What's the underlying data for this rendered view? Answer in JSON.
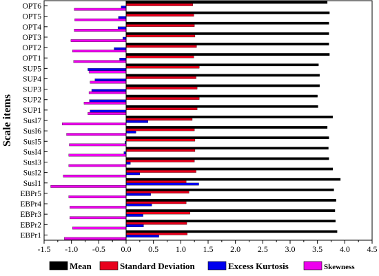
{
  "chart_data": {
    "type": "bar",
    "orientation": "horizontal",
    "ylabel": "Scale items",
    "xlim": [
      -1.5,
      4.5
    ],
    "xticks": [
      -1.5,
      -1.0,
      -0.5,
      0.0,
      0.5,
      1.0,
      1.5,
      2.0,
      2.5,
      3.0,
      3.5,
      4.0,
      4.5
    ],
    "xtick_labels": [
      "-1.5",
      "-1.0",
      "-0.5",
      "0.0",
      "0.5",
      "1.0",
      "1.5",
      "2.0",
      "2.5",
      "3.0",
      "3.5",
      "4.0",
      "4.5"
    ],
    "grid": false,
    "legend_position": "bottom",
    "categories": [
      "OPT6",
      "OPT5",
      "OPT4",
      "OPT3",
      "OPT2",
      "OPT1",
      "SUP5",
      "SUP4",
      "SUP3",
      "SUP2",
      "SUP1",
      "SusI7",
      "SusI6",
      "SusI5",
      "SusI4",
      "SusI3",
      "SusI2",
      "SusI1",
      "EBPr5",
      "EBPr4",
      "EBPr3",
      "EBPr2",
      "EBPr1"
    ],
    "series": [
      {
        "name": "Mean",
        "color": "#000000",
        "values": [
          3.68,
          3.72,
          3.71,
          3.71,
          3.71,
          3.72,
          3.52,
          3.54,
          3.54,
          3.5,
          3.51,
          3.78,
          3.68,
          3.71,
          3.7,
          3.71,
          3.78,
          3.92,
          3.8,
          3.84,
          3.82,
          3.83,
          3.86
        ]
      },
      {
        "name": "Standard Deviation",
        "color": "#e8001c",
        "values": [
          1.22,
          1.24,
          1.25,
          1.26,
          1.29,
          1.24,
          1.34,
          1.28,
          1.3,
          1.34,
          1.3,
          1.21,
          1.25,
          1.26,
          1.26,
          1.25,
          1.28,
          1.1,
          1.15,
          1.1,
          1.17,
          1.11,
          1.12
        ]
      },
      {
        "name": "Excess Kurtosis",
        "color": "#0000ee",
        "values": [
          -0.09,
          -0.14,
          -0.15,
          -0.06,
          -0.22,
          -0.12,
          -0.7,
          -0.57,
          -0.63,
          -0.67,
          -0.66,
          0.4,
          0.18,
          -0.02,
          -0.04,
          0.08,
          0.25,
          1.33,
          0.45,
          0.47,
          0.31,
          0.32,
          0.6
        ]
      },
      {
        "name": "Skewness",
        "color": "#ee00ee",
        "values": [
          -0.95,
          -0.94,
          -0.95,
          -1.01,
          -0.98,
          -0.96,
          -0.68,
          -0.66,
          -0.68,
          -0.77,
          -0.7,
          -1.17,
          -1.09,
          -1.04,
          -1.05,
          -1.05,
          -1.15,
          -1.38,
          -1.05,
          -1.03,
          -1.03,
          -0.98,
          -1.13
        ]
      }
    ]
  }
}
